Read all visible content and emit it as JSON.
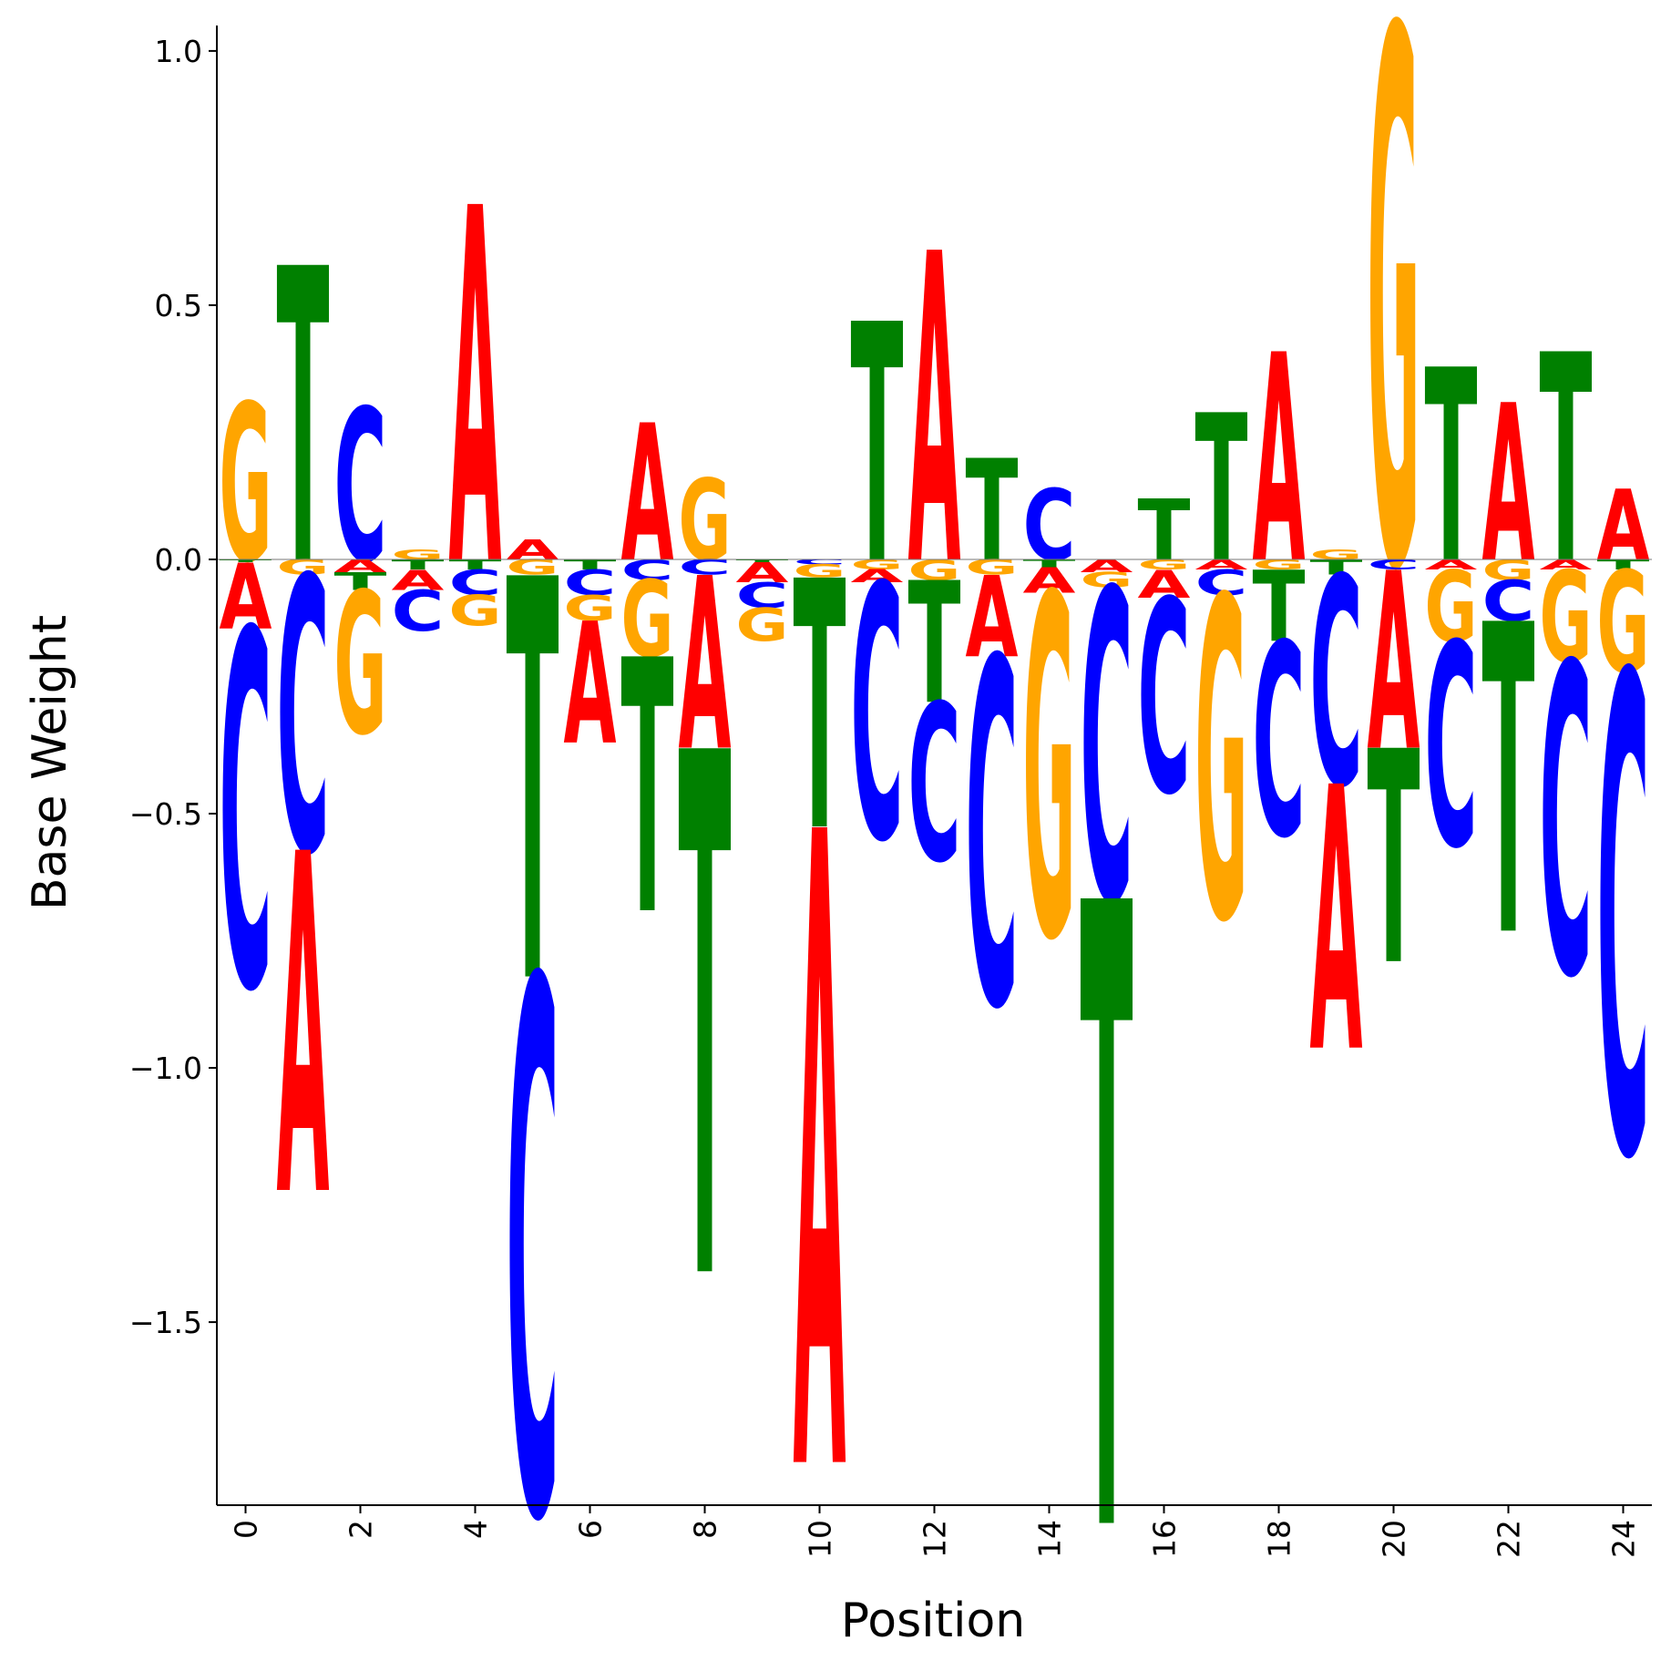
{
  "chart_data": {
    "type": "sequence-logo",
    "xlabel": "Position",
    "ylabel": "Base Weight",
    "ylim": [
      -1.86,
      1.05
    ],
    "xlim": [
      -0.5,
      24.5
    ],
    "xticks": [
      0,
      2,
      4,
      6,
      8,
      10,
      12,
      14,
      16,
      18,
      20,
      22,
      24
    ],
    "yticks": [
      1.0,
      0.5,
      0.0,
      -0.5,
      -1.0,
      -1.5
    ],
    "ytick_labels": [
      "1.0",
      "0.5",
      "0.0",
      "−0.5",
      "−1.0",
      "−1.5"
    ],
    "letter_colors": {
      "A": "#ff0000",
      "C": "#0000ff",
      "G": "#ffa500",
      "T": "#008000"
    },
    "positions": [
      {
        "x": 0,
        "weights": {
          "A": -0.13,
          "C": -0.7,
          "G": 0.31,
          "T": -0.005
        }
      },
      {
        "x": 1,
        "weights": {
          "A": -0.67,
          "C": -0.54,
          "G": -0.03,
          "T": 0.58
        }
      },
      {
        "x": 2,
        "weights": {
          "A": -0.025,
          "C": 0.3,
          "G": -0.28,
          "T": -0.035
        }
      },
      {
        "x": 3,
        "weights": {
          "A": -0.04,
          "C": -0.08,
          "G": 0.02,
          "T": -0.02
        }
      },
      {
        "x": 4,
        "weights": {
          "A": 0.7,
          "C": -0.05,
          "G": -0.06,
          "T": -0.02
        }
      },
      {
        "x": 5,
        "weights": {
          "A": 0.04,
          "C": -1.05,
          "G": -0.03,
          "T": -0.79
        }
      },
      {
        "x": 6,
        "weights": {
          "A": -0.24,
          "C": -0.05,
          "G": -0.05,
          "T": -0.02
        }
      },
      {
        "x": 7,
        "weights": {
          "A": 0.27,
          "C": -0.04,
          "G": -0.15,
          "T": -0.5
        }
      },
      {
        "x": 8,
        "weights": {
          "A": -0.34,
          "C": -0.03,
          "G": 0.16,
          "T": -1.03
        }
      },
      {
        "x": 9,
        "weights": {
          "A": -0.04,
          "C": -0.05,
          "G": -0.065,
          "T": -0.005
        }
      },
      {
        "x": 10,
        "weights": {
          "A": -1.25,
          "C": -0.01,
          "G": -0.025,
          "T": -0.49
        }
      },
      {
        "x": 11,
        "weights": {
          "A": -0.025,
          "C": -0.5,
          "G": -0.02,
          "T": 0.47
        }
      },
      {
        "x": 12,
        "weights": {
          "A": 0.61,
          "C": -0.31,
          "G": -0.04,
          "T": -0.24
        }
      },
      {
        "x": 13,
        "weights": {
          "A": -0.16,
          "C": -0.68,
          "G": -0.03,
          "T": 0.2
        }
      },
      {
        "x": 14,
        "weights": {
          "A": -0.05,
          "C": 0.14,
          "G": -0.67,
          "T": -0.015
        }
      },
      {
        "x": 15,
        "weights": {
          "A": -0.025,
          "C": -0.61,
          "G": -0.03,
          "T": -1.23
        }
      },
      {
        "x": 16,
        "weights": {
          "A": -0.055,
          "C": -0.38,
          "G": -0.02,
          "T": 0.12
        }
      },
      {
        "x": 17,
        "weights": {
          "A": -0.02,
          "C": -0.05,
          "G": -0.63,
          "T": 0.29
        }
      },
      {
        "x": 18,
        "weights": {
          "A": 0.41,
          "C": -0.38,
          "G": -0.02,
          "T": -0.14
        }
      },
      {
        "x": 19,
        "weights": {
          "A": -0.52,
          "C": -0.41,
          "G": 0.02,
          "T": -0.03
        }
      },
      {
        "x": 20,
        "weights": {
          "A": -0.35,
          "C": -0.02,
          "G": 1.05,
          "T": -0.42
        }
      },
      {
        "x": 21,
        "weights": {
          "A": -0.02,
          "C": -0.4,
          "G": -0.14,
          "T": 0.38
        }
      },
      {
        "x": 22,
        "weights": {
          "A": 0.31,
          "C": -0.08,
          "G": -0.04,
          "T": -0.61
        }
      },
      {
        "x": 23,
        "weights": {
          "A": -0.02,
          "C": -0.61,
          "G": -0.18,
          "T": 0.41
        }
      },
      {
        "x": 24,
        "weights": {
          "A": 0.14,
          "C": -0.94,
          "G": -0.2,
          "T": -0.02
        }
      }
    ]
  }
}
